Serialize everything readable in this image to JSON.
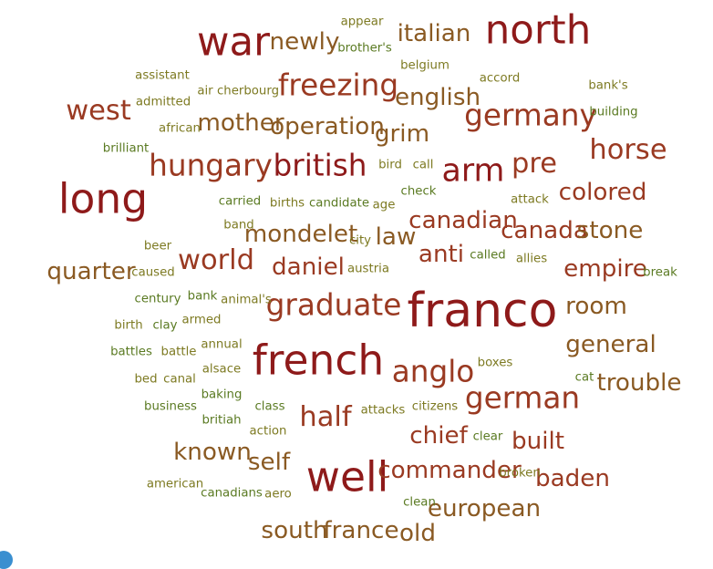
{
  "palette": {
    "dark_red": "#8e1a1a",
    "red_brown": "#9a3a22",
    "brown": "#8a5a23",
    "olive": "#7d7a22",
    "green": "#5a7a22",
    "corner_dot": "#3a8fd0"
  },
  "words": [
    {
      "text": "franco",
      "weight": 100,
      "color": "dark_red"
    },
    {
      "text": "french",
      "weight": 85,
      "color": "dark_red"
    },
    {
      "text": "well",
      "weight": 85,
      "color": "dark_red"
    },
    {
      "text": "long",
      "weight": 85,
      "color": "dark_red"
    },
    {
      "text": "north",
      "weight": 80,
      "color": "dark_red"
    },
    {
      "text": "war",
      "weight": 80,
      "color": "dark_red"
    },
    {
      "text": "arm",
      "weight": 60,
      "color": "dark_red"
    },
    {
      "text": "graduate",
      "weight": 55,
      "color": "red_brown"
    },
    {
      "text": "anglo",
      "weight": 55,
      "color": "red_brown"
    },
    {
      "text": "german",
      "weight": 55,
      "color": "red_brown"
    },
    {
      "text": "hungary",
      "weight": 55,
      "color": "red_brown"
    },
    {
      "text": "british",
      "weight": 55,
      "color": "dark_red"
    },
    {
      "text": "germany",
      "weight": 55,
      "color": "red_brown"
    },
    {
      "text": "freezing",
      "weight": 55,
      "color": "red_brown"
    },
    {
      "text": "horse",
      "weight": 50,
      "color": "red_brown"
    },
    {
      "text": "world",
      "weight": 50,
      "color": "red_brown"
    },
    {
      "text": "half",
      "weight": 50,
      "color": "red_brown"
    },
    {
      "text": "west",
      "weight": 50,
      "color": "red_brown"
    },
    {
      "text": "pre",
      "weight": 50,
      "color": "red_brown"
    },
    {
      "text": "colored",
      "weight": 40,
      "color": "red_brown"
    },
    {
      "text": "empire",
      "weight": 40,
      "color": "red_brown"
    },
    {
      "text": "canadian",
      "weight": 40,
      "color": "red_brown"
    },
    {
      "text": "canada",
      "weight": 40,
      "color": "red_brown"
    },
    {
      "text": "commander",
      "weight": 40,
      "color": "red_brown"
    },
    {
      "text": "baden",
      "weight": 40,
      "color": "red_brown"
    },
    {
      "text": "built",
      "weight": 40,
      "color": "red_brown"
    },
    {
      "text": "chief",
      "weight": 40,
      "color": "red_brown"
    },
    {
      "text": "anti",
      "weight": 40,
      "color": "red_brown"
    },
    {
      "text": "daniel",
      "weight": 40,
      "color": "red_brown"
    },
    {
      "text": "mondelet",
      "weight": 40,
      "color": "brown"
    },
    {
      "text": "european",
      "weight": 40,
      "color": "brown"
    },
    {
      "text": "english",
      "weight": 40,
      "color": "brown"
    },
    {
      "text": "italian",
      "weight": 40,
      "color": "brown"
    },
    {
      "text": "newly",
      "weight": 40,
      "color": "brown"
    },
    {
      "text": "mother",
      "weight": 40,
      "color": "brown"
    },
    {
      "text": "operation",
      "weight": 40,
      "color": "brown"
    },
    {
      "text": "grim",
      "weight": 40,
      "color": "brown"
    },
    {
      "text": "law",
      "weight": 40,
      "color": "brown"
    },
    {
      "text": "stone",
      "weight": 40,
      "color": "brown"
    },
    {
      "text": "room",
      "weight": 40,
      "color": "brown"
    },
    {
      "text": "general",
      "weight": 40,
      "color": "brown"
    },
    {
      "text": "trouble",
      "weight": 40,
      "color": "brown"
    },
    {
      "text": "quarter",
      "weight": 40,
      "color": "brown"
    },
    {
      "text": "known",
      "weight": 40,
      "color": "brown"
    },
    {
      "text": "self",
      "weight": 40,
      "color": "brown"
    },
    {
      "text": "south",
      "weight": 40,
      "color": "brown"
    },
    {
      "text": "france",
      "weight": 40,
      "color": "brown"
    },
    {
      "text": "old",
      "weight": 40,
      "color": "brown"
    },
    {
      "text": "appear",
      "weight": 10,
      "color": "olive"
    },
    {
      "text": "brother's",
      "weight": 10,
      "color": "green"
    },
    {
      "text": "belgium",
      "weight": 10,
      "color": "olive"
    },
    {
      "text": "accord",
      "weight": 10,
      "color": "olive"
    },
    {
      "text": "bank's",
      "weight": 10,
      "color": "olive"
    },
    {
      "text": "building",
      "weight": 10,
      "color": "green"
    },
    {
      "text": "assistant",
      "weight": 10,
      "color": "olive"
    },
    {
      "text": "air",
      "weight": 10,
      "color": "olive"
    },
    {
      "text": "cherbourg",
      "weight": 10,
      "color": "olive"
    },
    {
      "text": "admitted",
      "weight": 10,
      "color": "olive"
    },
    {
      "text": "african",
      "weight": 10,
      "color": "olive"
    },
    {
      "text": "brilliant",
      "weight": 10,
      "color": "green"
    },
    {
      "text": "bird",
      "weight": 10,
      "color": "olive"
    },
    {
      "text": "call",
      "weight": 10,
      "color": "olive"
    },
    {
      "text": "check",
      "weight": 10,
      "color": "green"
    },
    {
      "text": "attack",
      "weight": 10,
      "color": "olive"
    },
    {
      "text": "carried",
      "weight": 10,
      "color": "green"
    },
    {
      "text": "births",
      "weight": 10,
      "color": "olive"
    },
    {
      "text": "candidate",
      "weight": 10,
      "color": "green"
    },
    {
      "text": "age",
      "weight": 10,
      "color": "olive"
    },
    {
      "text": "band",
      "weight": 10,
      "color": "olive"
    },
    {
      "text": "city",
      "weight": 10,
      "color": "olive"
    },
    {
      "text": "beer",
      "weight": 10,
      "color": "olive"
    },
    {
      "text": "called",
      "weight": 10,
      "color": "green"
    },
    {
      "text": "allies",
      "weight": 10,
      "color": "olive"
    },
    {
      "text": "caused",
      "weight": 10,
      "color": "olive"
    },
    {
      "text": "austria",
      "weight": 10,
      "color": "olive"
    },
    {
      "text": "break",
      "weight": 10,
      "color": "green"
    },
    {
      "text": "century",
      "weight": 10,
      "color": "green"
    },
    {
      "text": "bank",
      "weight": 10,
      "color": "green"
    },
    {
      "text": "animal's",
      "weight": 10,
      "color": "olive"
    },
    {
      "text": "armed",
      "weight": 10,
      "color": "olive"
    },
    {
      "text": "birth",
      "weight": 10,
      "color": "olive"
    },
    {
      "text": "clay",
      "weight": 10,
      "color": "green"
    },
    {
      "text": "annual",
      "weight": 10,
      "color": "olive"
    },
    {
      "text": "battles",
      "weight": 10,
      "color": "green"
    },
    {
      "text": "battle",
      "weight": 10,
      "color": "olive"
    },
    {
      "text": "boxes",
      "weight": 10,
      "color": "olive"
    },
    {
      "text": "alsace",
      "weight": 10,
      "color": "olive"
    },
    {
      "text": "cat",
      "weight": 10,
      "color": "green"
    },
    {
      "text": "bed",
      "weight": 10,
      "color": "olive"
    },
    {
      "text": "canal",
      "weight": 10,
      "color": "olive"
    },
    {
      "text": "baking",
      "weight": 10,
      "color": "green"
    },
    {
      "text": "business",
      "weight": 10,
      "color": "green"
    },
    {
      "text": "class",
      "weight": 10,
      "color": "green"
    },
    {
      "text": "citizens",
      "weight": 10,
      "color": "olive"
    },
    {
      "text": "attacks",
      "weight": 10,
      "color": "olive"
    },
    {
      "text": "britiah",
      "weight": 10,
      "color": "green"
    },
    {
      "text": "action",
      "weight": 10,
      "color": "olive"
    },
    {
      "text": "clear",
      "weight": 10,
      "color": "green"
    },
    {
      "text": "broken",
      "weight": 10,
      "color": "olive"
    },
    {
      "text": "american",
      "weight": 10,
      "color": "olive"
    },
    {
      "text": "canadians",
      "weight": 10,
      "color": "green"
    },
    {
      "text": "aero",
      "weight": 10,
      "color": "olive"
    },
    {
      "text": "clean",
      "weight": 10,
      "color": "green"
    }
  ]
}
